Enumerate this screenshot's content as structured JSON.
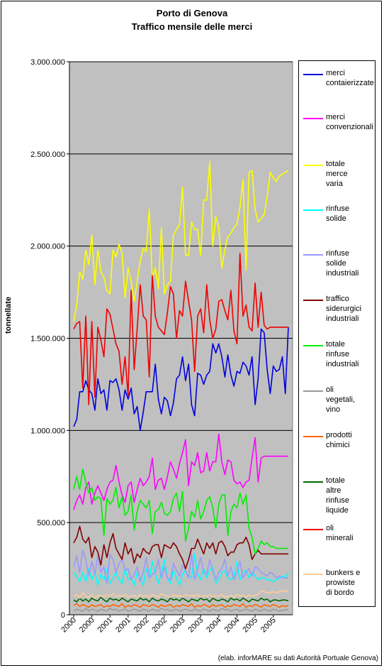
{
  "title_line1": "Porto di Genova",
  "title_line2": "Traffico mensile delle merci",
  "credit": "(elab. inforMARE su dati Autorità Portuale Genova)",
  "chart_data": {
    "type": "line",
    "ylabel": "tonnellate",
    "ylim": [
      0,
      3000000
    ],
    "ytick_labels": [
      "0",
      "500.000",
      "1.000.000",
      "1.500.000",
      "2.000.000",
      "2.500.000",
      "3.000.000"
    ],
    "xtick_labels": [
      "2000",
      "2000",
      "2001",
      "2001",
      "2002",
      "2002",
      "2003",
      "2003",
      "2004",
      "2004",
      "2005",
      "2005"
    ],
    "grid": "horizontal",
    "legend": "right",
    "months": 72,
    "series": [
      {
        "name": "merci\ncontaierizzate",
        "color": "#0000dd",
        "values": [
          1020000,
          1060000,
          1210000,
          1210000,
          1270000,
          1220000,
          1200000,
          1110000,
          1280000,
          1200000,
          1220000,
          1110000,
          1270000,
          1260000,
          1280000,
          1220000,
          1110000,
          1220000,
          1170000,
          1230000,
          1090000,
          1130000,
          1000000,
          1100000,
          1210000,
          1210000,
          1210000,
          1360000,
          1170000,
          1090000,
          1180000,
          1160000,
          1080000,
          1150000,
          1280000,
          1300000,
          1400000,
          1270000,
          1360000,
          1140000,
          1080000,
          1310000,
          1300000,
          1250000,
          1300000,
          1320000,
          1470000,
          1420000,
          1470000,
          1400000,
          1290000,
          1410000,
          1300000,
          1240000,
          1320000,
          1310000,
          1370000,
          1350000,
          1300000,
          1400000,
          1140000,
          1280000,
          1550000,
          1530000,
          1330000,
          1200000,
          1350000,
          1320000,
          1330000,
          1400000,
          1200000,
          1560000
        ]
      },
      {
        "name": "merci\nconvenzionali",
        "color": "#ff00ff",
        "values": [
          570000,
          620000,
          650000,
          600000,
          690000,
          720000,
          600000,
          660000,
          700000,
          660000,
          620000,
          680000,
          720000,
          730000,
          810000,
          720000,
          650000,
          610000,
          700000,
          720000,
          610000,
          680000,
          740000,
          700000,
          720000,
          750000,
          850000,
          680000,
          730000,
          740000,
          680000,
          750000,
          830000,
          790000,
          740000,
          820000,
          880000,
          950000,
          700000,
          830000,
          810000,
          880000,
          770000,
          780000,
          880000,
          780000,
          830000,
          830000,
          980000,
          830000,
          760000,
          840000,
          830000,
          730000,
          710000,
          720000,
          690000,
          720000,
          730000,
          850000,
          960000,
          720000,
          850000,
          860000,
          860000,
          860000,
          860000,
          860000,
          860000,
          860000,
          860000,
          860000
        ]
      },
      {
        "name": "totale\nmerce\nvaria",
        "color": "#ffff00",
        "values": [
          1590000,
          1680000,
          1860000,
          1820000,
          1980000,
          1900000,
          2060000,
          1790000,
          1980000,
          1860000,
          1830000,
          1760000,
          1740000,
          1980000,
          1940000,
          2010000,
          1960000,
          1720000,
          1880000,
          1810000,
          1700000,
          1810000,
          1920000,
          1990000,
          1970000,
          2200000,
          1820000,
          1880000,
          1770000,
          2100000,
          1740000,
          1790000,
          1810000,
          2060000,
          2090000,
          2120000,
          2320000,
          1950000,
          1950000,
          2130000,
          2090000,
          2090000,
          1950000,
          2250000,
          2250000,
          2460000,
          2000000,
          2160000,
          2100000,
          1880000,
          1980000,
          2050000,
          2070000,
          2100000,
          2120000,
          2210000,
          2360000,
          1870000,
          2400000,
          2410000,
          2200000,
          2130000,
          2150000,
          2170000,
          2270000,
          2400000,
          2370000,
          2350000,
          2380000,
          2390000,
          2400000,
          2410000
        ]
      },
      {
        "name": "rinfuse\nsolide",
        "color": "#00ffff",
        "values": [
          230000,
          210000,
          180000,
          230000,
          180000,
          250000,
          190000,
          230000,
          160000,
          220000,
          190000,
          250000,
          170000,
          200000,
          230000,
          190000,
          170000,
          250000,
          190000,
          200000,
          160000,
          230000,
          200000,
          160000,
          250000,
          200000,
          290000,
          220000,
          170000,
          230000,
          300000,
          200000,
          170000,
          240000,
          200000,
          160000,
          220000,
          240000,
          210000,
          200000,
          330000,
          220000,
          190000,
          250000,
          200000,
          240000,
          260000,
          170000,
          190000,
          230000,
          240000,
          200000,
          190000,
          210000,
          290000,
          190000,
          230000,
          240000,
          200000,
          230000,
          210000,
          190000,
          200000,
          200000,
          190000,
          190000,
          180000,
          190000,
          200000,
          210000,
          200000,
          230000
        ]
      },
      {
        "name": "rinfuse\nsolide\nindustriali",
        "color": "#9999ff",
        "values": [
          260000,
          320000,
          230000,
          350000,
          300000,
          210000,
          290000,
          220000,
          320000,
          230000,
          260000,
          170000,
          330000,
          300000,
          230000,
          280000,
          300000,
          240000,
          250000,
          190000,
          220000,
          260000,
          180000,
          230000,
          310000,
          200000,
          220000,
          230000,
          300000,
          200000,
          260000,
          200000,
          190000,
          280000,
          240000,
          210000,
          270000,
          240000,
          200000,
          330000,
          190000,
          250000,
          310000,
          230000,
          220000,
          300000,
          240000,
          190000,
          230000,
          250000,
          300000,
          210000,
          260000,
          190000,
          230000,
          290000,
          200000,
          230000,
          250000,
          210000,
          260000,
          250000,
          230000,
          220000,
          210000,
          230000,
          220000,
          200000,
          210000,
          200000,
          200000,
          200000
        ]
      },
      {
        "name": "traffico\nsiderurgici\nindustriali",
        "color": "#800000",
        "values": [
          390000,
          420000,
          480000,
          410000,
          390000,
          420000,
          310000,
          370000,
          340000,
          270000,
          380000,
          310000,
          390000,
          440000,
          360000,
          330000,
          300000,
          390000,
          330000,
          360000,
          280000,
          330000,
          310000,
          360000,
          340000,
          330000,
          370000,
          380000,
          380000,
          310000,
          380000,
          370000,
          360000,
          390000,
          370000,
          330000,
          300000,
          250000,
          300000,
          360000,
          360000,
          410000,
          370000,
          330000,
          390000,
          360000,
          390000,
          330000,
          390000,
          400000,
          370000,
          320000,
          340000,
          340000,
          380000,
          390000,
          390000,
          420000,
          380000,
          300000,
          330000,
          350000,
          330000,
          330000,
          330000,
          330000,
          330000,
          330000,
          330000,
          330000,
          330000,
          330000
        ]
      },
      {
        "name": "totale\nrinfuse\nindustriali",
        "color": "#00ee00",
        "values": [
          680000,
          750000,
          680000,
          790000,
          720000,
          660000,
          690000,
          620000,
          640000,
          630000,
          430000,
          630000,
          600000,
          620000,
          690000,
          580000,
          640000,
          540000,
          560000,
          650000,
          460000,
          560000,
          620000,
          600000,
          580000,
          620000,
          440000,
          560000,
          570000,
          610000,
          550000,
          540000,
          560000,
          630000,
          660000,
          560000,
          670000,
          400000,
          470000,
          560000,
          530000,
          620000,
          520000,
          560000,
          620000,
          640000,
          580000,
          470000,
          600000,
          650000,
          650000,
          430000,
          560000,
          600000,
          580000,
          660000,
          600000,
          650000,
          470000,
          420000,
          330000,
          360000,
          400000,
          380000,
          390000,
          370000,
          370000,
          360000,
          360000,
          360000,
          360000,
          360000
        ]
      },
      {
        "name": "oli\nvegetali,\nvino",
        "color": "#999999",
        "values": [
          20000,
          30000,
          25000,
          20000,
          35000,
          20000,
          30000,
          25000,
          20000,
          30000,
          25000,
          20000,
          35000,
          25000,
          30000,
          20000,
          25000,
          30000,
          20000,
          25000,
          30000,
          25000,
          20000,
          30000,
          25000,
          20000,
          30000,
          25000,
          20000,
          35000,
          25000,
          30000,
          20000,
          25000,
          30000,
          20000,
          25000,
          30000,
          25000,
          20000,
          30000,
          25000,
          20000,
          30000,
          25000,
          20000,
          30000,
          25000,
          20000,
          35000,
          25000,
          30000,
          20000,
          25000,
          30000,
          20000,
          25000,
          30000,
          25000,
          20000,
          30000,
          25000,
          20000,
          30000,
          25000,
          20000,
          30000,
          25000,
          20000,
          25000,
          25000,
          30000
        ]
      },
      {
        "name": "prodotti\nchimici",
        "color": "#ff6600",
        "values": [
          50000,
          60000,
          45000,
          55000,
          50000,
          40000,
          55000,
          45000,
          50000,
          55000,
          40000,
          50000,
          45000,
          55000,
          50000,
          45000,
          60000,
          40000,
          50000,
          45000,
          55000,
          50000,
          40000,
          55000,
          50000,
          45000,
          55000,
          50000,
          40000,
          55000,
          45000,
          50000,
          55000,
          40000,
          50000,
          45000,
          55000,
          50000,
          45000,
          60000,
          40000,
          50000,
          45000,
          55000,
          50000,
          40000,
          55000,
          45000,
          50000,
          55000,
          40000,
          50000,
          45000,
          55000,
          50000,
          45000,
          60000,
          40000,
          50000,
          45000,
          55000,
          50000,
          40000,
          55000,
          50000,
          45000,
          55000,
          50000,
          40000,
          50000,
          45000,
          50000
        ]
      },
      {
        "name": "totale\naltre\nrinfuse\nliquide",
        "color": "#006600",
        "values": [
          80000,
          70000,
          90000,
          75000,
          85000,
          70000,
          90000,
          80000,
          75000,
          95000,
          80000,
          70000,
          90000,
          80000,
          85000,
          75000,
          90000,
          80000,
          70000,
          85000,
          80000,
          75000,
          90000,
          80000,
          85000,
          70000,
          90000,
          80000,
          75000,
          85000,
          80000,
          70000,
          90000,
          80000,
          85000,
          75000,
          90000,
          80000,
          70000,
          85000,
          80000,
          75000,
          90000,
          80000,
          85000,
          70000,
          90000,
          80000,
          75000,
          85000,
          80000,
          70000,
          90000,
          80000,
          85000,
          75000,
          90000,
          80000,
          70000,
          85000,
          80000,
          75000,
          90000,
          80000,
          85000,
          70000,
          80000,
          80000,
          75000,
          80000,
          80000,
          75000
        ]
      },
      {
        "name": "oli\nminerali",
        "color": "#ee0000",
        "values": [
          1550000,
          1580000,
          1590000,
          1230000,
          1620000,
          1140000,
          1590000,
          1180000,
          1560000,
          1490000,
          1400000,
          1660000,
          1630000,
          1550000,
          1470000,
          1430000,
          1250000,
          1400000,
          1190000,
          1760000,
          1330000,
          1550000,
          1790000,
          1620000,
          1600000,
          1290000,
          1840000,
          1620000,
          1560000,
          1540000,
          1520000,
          1640000,
          1780000,
          1740000,
          1500000,
          1650000,
          1620000,
          1810000,
          1700000,
          1600000,
          1320000,
          1620000,
          1660000,
          1530000,
          1790000,
          1600000,
          1500000,
          1550000,
          1700000,
          1710000,
          1650000,
          1600000,
          1760000,
          1540000,
          1470000,
          1960000,
          1620000,
          1680000,
          1560000,
          1540000,
          1800000,
          1560000,
          1750000,
          1570000,
          1550000,
          1560000,
          1560000,
          1560000,
          1560000,
          1560000,
          1560000,
          1560000
        ]
      },
      {
        "name": "bunkers e\nprowiste\ndi bordo",
        "color": "#ffcc99",
        "values": [
          100000,
          110000,
          90000,
          120000,
          100000,
          95000,
          110000,
          90000,
          105000,
          100000,
          95000,
          110000,
          100000,
          115000,
          95000,
          105000,
          100000,
          110000,
          95000,
          100000,
          105000,
          95000,
          110000,
          100000,
          105000,
          95000,
          110000,
          100000,
          95000,
          115000,
          105000,
          100000,
          95000,
          110000,
          100000,
          105000,
          95000,
          110000,
          100000,
          105000,
          100000,
          110000,
          95000,
          105000,
          100000,
          110000,
          95000,
          105000,
          100000,
          110000,
          95000,
          100000,
          105000,
          95000,
          110000,
          100000,
          105000,
          95000,
          110000,
          100000,
          105000,
          110000,
          130000,
          125000,
          120000,
          120000,
          125000,
          120000,
          125000,
          130000,
          125000,
          130000
        ]
      }
    ]
  }
}
